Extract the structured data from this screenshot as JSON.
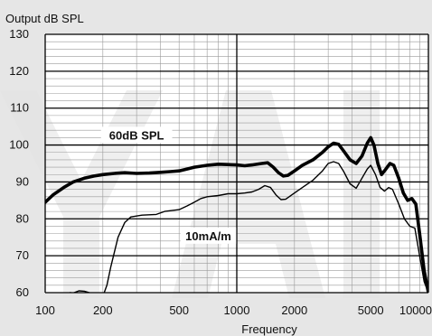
{
  "chart_data": {
    "type": "line",
    "title": "",
    "ylabel": "Output dB SPL",
    "xlabel": "Frequency",
    "x_scale": "log",
    "xlim": [
      100,
      10000
    ],
    "ylim": [
      60,
      130
    ],
    "x_ticks": [
      100,
      200,
      500,
      1000,
      2000,
      5000,
      10000
    ],
    "x_tick_labels": [
      "100",
      "200",
      "500",
      "1000",
      "2000",
      "5000",
      "10000"
    ],
    "y_ticks": [
      60,
      70,
      80,
      90,
      100,
      110,
      120,
      130
    ],
    "y_tick_labels": [
      "60",
      "70",
      "80",
      "90",
      "100",
      "110",
      "120",
      "130"
    ],
    "grid": true,
    "series": [
      {
        "name": "60dB SPL",
        "line_weight": "thick",
        "color": "#000000",
        "points": [
          [
            100,
            84.5
          ],
          [
            110,
            86.5
          ],
          [
            125,
            88.5
          ],
          [
            140,
            90
          ],
          [
            160,
            91
          ],
          [
            180,
            91.6
          ],
          [
            200,
            92
          ],
          [
            230,
            92.3
          ],
          [
            260,
            92.5
          ],
          [
            300,
            92.3
          ],
          [
            350,
            92.4
          ],
          [
            400,
            92.6
          ],
          [
            450,
            92.8
          ],
          [
            500,
            93
          ],
          [
            550,
            93.5
          ],
          [
            600,
            94
          ],
          [
            700,
            94.5
          ],
          [
            800,
            94.8
          ],
          [
            900,
            94.7
          ],
          [
            1000,
            94.6
          ],
          [
            1100,
            94.4
          ],
          [
            1200,
            94.6
          ],
          [
            1350,
            95
          ],
          [
            1450,
            95.2
          ],
          [
            1550,
            94
          ],
          [
            1650,
            92.5
          ],
          [
            1750,
            91.6
          ],
          [
            1850,
            91.8
          ],
          [
            2000,
            93
          ],
          [
            2200,
            94.5
          ],
          [
            2500,
            96
          ],
          [
            2800,
            98
          ],
          [
            3000,
            99.5
          ],
          [
            3200,
            100.5
          ],
          [
            3400,
            100.2
          ],
          [
            3600,
            98.5
          ],
          [
            3900,
            96
          ],
          [
            4200,
            95
          ],
          [
            4500,
            97
          ],
          [
            4800,
            100.5
          ],
          [
            5000,
            102
          ],
          [
            5200,
            100
          ],
          [
            5450,
            95
          ],
          [
            5700,
            92
          ],
          [
            6000,
            93.5
          ],
          [
            6300,
            95
          ],
          [
            6600,
            94.5
          ],
          [
            7000,
            91
          ],
          [
            7400,
            87
          ],
          [
            7800,
            85
          ],
          [
            8200,
            85.5
          ],
          [
            8600,
            84
          ],
          [
            9000,
            76
          ],
          [
            9500,
            66
          ],
          [
            10000,
            60
          ],
          [
            10500,
            58.5
          ],
          [
            11000,
            60.5
          ]
        ]
      },
      {
        "name": "10mA/m",
        "line_weight": "thin",
        "color": "#000000",
        "points": [
          [
            170,
            53
          ],
          [
            190,
            56
          ],
          [
            200,
            59
          ],
          [
            210,
            62
          ],
          [
            220,
            67
          ],
          [
            240,
            75
          ],
          [
            260,
            79
          ],
          [
            280,
            80.5
          ],
          [
            320,
            81
          ],
          [
            380,
            81.2
          ],
          [
            420,
            82
          ],
          [
            500,
            82.5
          ],
          [
            550,
            83.5
          ],
          [
            600,
            84.5
          ],
          [
            650,
            85.5
          ],
          [
            700,
            86
          ],
          [
            800,
            86.3
          ],
          [
            900,
            86.8
          ],
          [
            1000,
            86.8
          ],
          [
            1100,
            87
          ],
          [
            1200,
            87.3
          ],
          [
            1300,
            88
          ],
          [
            1400,
            89
          ],
          [
            1500,
            88.5
          ],
          [
            1600,
            86.5
          ],
          [
            1700,
            85.2
          ],
          [
            1800,
            85.3
          ],
          [
            2000,
            87
          ],
          [
            2200,
            88.5
          ],
          [
            2500,
            90.5
          ],
          [
            2800,
            93
          ],
          [
            3000,
            95
          ],
          [
            3200,
            95.5
          ],
          [
            3400,
            95
          ],
          [
            3600,
            93
          ],
          [
            3900,
            89.5
          ],
          [
            4200,
            88.3
          ],
          [
            4500,
            91
          ],
          [
            4800,
            93.5
          ],
          [
            5000,
            94.5
          ],
          [
            5300,
            92
          ],
          [
            5600,
            88.5
          ],
          [
            5900,
            87.5
          ],
          [
            6200,
            88.5
          ],
          [
            6500,
            88
          ],
          [
            7000,
            84
          ],
          [
            7500,
            80
          ],
          [
            8000,
            78
          ],
          [
            8500,
            77.5
          ],
          [
            9000,
            70
          ],
          [
            9500,
            63
          ],
          [
            10000,
            60
          ],
          [
            10300,
            59
          ]
        ]
      },
      {
        "name": "",
        "line_weight": "thin",
        "color": "#000000",
        "points": [
          [
            135,
            60
          ],
          [
            140,
            59.9
          ],
          [
            150,
            60.5
          ],
          [
            160,
            60.4
          ],
          [
            170,
            60
          ]
        ]
      }
    ],
    "annotations": [
      {
        "text": "60dB SPL",
        "x": 300,
        "y": 102.5
      },
      {
        "text": "10mA/m",
        "x": 710,
        "y": 75.2
      }
    ]
  }
}
